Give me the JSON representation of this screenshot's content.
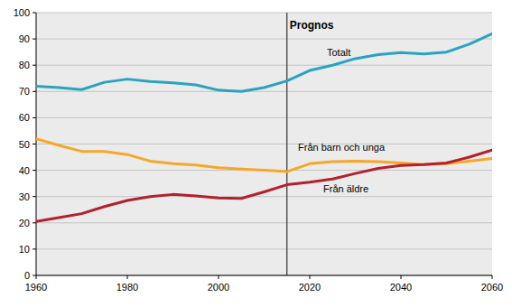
{
  "chart_data": {
    "type": "line",
    "x": [
      1960,
      1965,
      1970,
      1975,
      1980,
      1985,
      1990,
      1995,
      2000,
      2005,
      2010,
      2015,
      2020,
      2025,
      2030,
      2035,
      2040,
      2045,
      2050,
      2055,
      2060
    ],
    "series": [
      {
        "name": "Totalt",
        "color": "#2aa3c0",
        "values": [
          72,
          71.5,
          70.7,
          73.5,
          74.7,
          73.8,
          73.3,
          72.5,
          70.5,
          70.0,
          71.5,
          74,
          78,
          80,
          82.5,
          84,
          84.8,
          84.3,
          85,
          88,
          92
        ]
      },
      {
        "name": "Från barn och unga",
        "color": "#f5a72a",
        "values": [
          52,
          49.5,
          47.2,
          47.2,
          46,
          43.5,
          42.5,
          42,
          41,
          40.5,
          40,
          39.5,
          42.5,
          43.3,
          43.5,
          43.3,
          42.8,
          42.2,
          42.5,
          43.5,
          44.5
        ]
      },
      {
        "name": "Från äldre",
        "color": "#b3202f",
        "values": [
          20.5,
          22,
          23.5,
          26.2,
          28.5,
          30,
          30.8,
          30.2,
          29.5,
          29.3,
          31.8,
          34.5,
          35.5,
          36.7,
          38.8,
          40.7,
          41.8,
          42.2,
          42.8,
          45,
          47.7
        ]
      }
    ],
    "xlim": [
      1960,
      2060
    ],
    "xticks": [
      1960,
      1980,
      2000,
      2020,
      2040,
      2060
    ],
    "ylim": [
      0,
      100
    ],
    "yticks": [
      0,
      10,
      20,
      30,
      40,
      50,
      60,
      70,
      80,
      90,
      100
    ],
    "grid": true,
    "annotations": [
      {
        "text": "Prognos",
        "x": 2015
      }
    ]
  }
}
